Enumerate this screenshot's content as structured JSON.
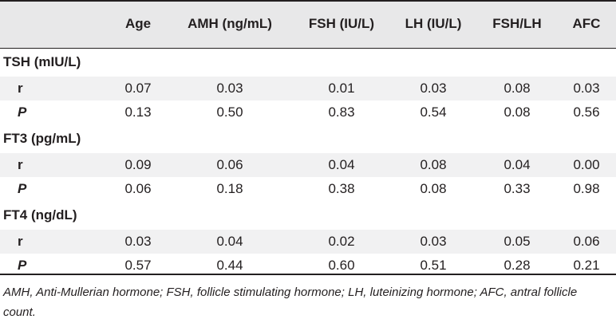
{
  "table": {
    "headers": [
      "",
      "Age",
      "AMH (ng/mL)",
      "FSH (IU/L)",
      "LH (IU/L)",
      "FSH/LH",
      "AFC"
    ],
    "sections": [
      {
        "title": "TSH (mIU/L)",
        "rows": [
          {
            "label": "r",
            "values": [
              "0.07",
              "0.03",
              "0.01",
              "0.03",
              "0.08",
              "0.03"
            ]
          },
          {
            "label": "P",
            "values": [
              "0.13",
              "0.50",
              "0.83",
              "0.54",
              "0.08",
              "0.56"
            ]
          }
        ]
      },
      {
        "title": "FT3 (pg/mL)",
        "rows": [
          {
            "label": "r",
            "values": [
              "0.09",
              "0.06",
              "0.04",
              "0.08",
              "0.04",
              "0.00"
            ]
          },
          {
            "label": "P",
            "values": [
              "0.06",
              "0.18",
              "0.38",
              "0.08",
              "0.33",
              "0.98"
            ]
          }
        ]
      },
      {
        "title": "FT4 (ng/dL)",
        "rows": [
          {
            "label": "r",
            "values": [
              "0.03",
              "0.04",
              "0.02",
              "0.03",
              "0.05",
              "0.06"
            ]
          },
          {
            "label": "P",
            "values": [
              "0.57",
              "0.44",
              "0.60",
              "0.51",
              "0.28",
              "0.21"
            ]
          }
        ]
      }
    ]
  },
  "footnote": "AMH, Anti-Mullerian hormone; FSH, follicle stimulating hormone; LH, luteinizing hormone; AFC, antral follicle count."
}
